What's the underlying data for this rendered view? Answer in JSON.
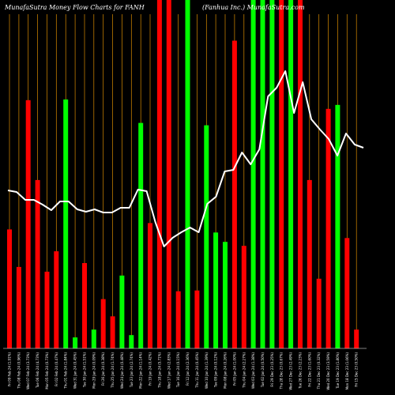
{
  "header": {
    "title_left": "MunafaSutra  Money Flow  Charts for FANH",
    "title_right": "(Fanhua  Inc.)  MunafaSutra.com"
  },
  "colors": {
    "background": "#000000",
    "up": "#00ff00",
    "down": "#ff0000",
    "line": "#ffffff",
    "grid": "#d98c00"
  },
  "chart_data": {
    "type": "bar",
    "overlay": "line",
    "grid": "vertical",
    "bars": [
      {
        "label": "Fri 09 Feb 24 (1.91%)",
        "value": 152,
        "color": "red"
      },
      {
        "label": "Thu 08 Feb 24 (0.96%)",
        "value": 104,
        "color": "red"
      },
      {
        "label": "Wed 07 Feb 24 (3.73%)",
        "value": 317,
        "color": "red"
      },
      {
        "label": "Tue 06 Feb 24 (4.73%)",
        "value": 215,
        "color": "red"
      },
      {
        "label": "Mon 05 Feb 24 (0.73%)",
        "value": 98,
        "color": "red"
      },
      {
        "label": "Fri 02 Feb 24 (0.47%)",
        "value": 124,
        "color": "red"
      },
      {
        "label": "Thu 01 Feb 24 (1.84%)",
        "value": 318,
        "color": "green"
      },
      {
        "label": "Wed 31 Jan 24 (0.45%)",
        "value": 14,
        "color": "green"
      },
      {
        "label": "Tue 30 Jan 24 (1.51%)",
        "value": 109,
        "color": "red"
      },
      {
        "label": "Mon 29 Jan 24 (0.09%)",
        "value": 24,
        "color": "green"
      },
      {
        "label": "Fri 26 Jan 24 (0.38%)",
        "value": 63,
        "color": "red"
      },
      {
        "label": "Thu 25 Jan 24 (1.74%)",
        "value": 41,
        "color": "red"
      },
      {
        "label": "Wed 24 Jan 24 (0.48%)",
        "value": 93,
        "color": "green"
      },
      {
        "label": "Tue 23 Jan 24 (2.74%)",
        "value": 17,
        "color": "green"
      },
      {
        "label": "Mon 22 Jan 24 (1.14%)",
        "value": 288,
        "color": "green"
      },
      {
        "label": "Fri 19 Jan 24 (0.42%)",
        "value": 160,
        "color": "red"
      },
      {
        "label": "Thu 18 Jan 24 (5.71%)",
        "value": 445,
        "color": "red"
      },
      {
        "label": "Wed 17 Jan 24 (2.83%)",
        "value": 445,
        "color": "red"
      },
      {
        "label": "Tue 16 Jan 24 (0.15%)",
        "value": 73,
        "color": "red"
      },
      {
        "label": "Fri 12 Jan 24 (2.36%)",
        "value": 445,
        "color": "green"
      },
      {
        "label": "Thu 11 Jan 24 (0.45%)",
        "value": 74,
        "color": "red"
      },
      {
        "label": "Wed 10 Jan 24 (1.39%)",
        "value": 285,
        "color": "green"
      },
      {
        "label": "Tue 09 Jan 24 (0.12%)",
        "value": 148,
        "color": "green"
      },
      {
        "label": "Mon 08 Jan 24 (0.26%)",
        "value": 136,
        "color": "green"
      },
      {
        "label": "Fri 05 Jan 24 (1.00%)",
        "value": 393,
        "color": "red"
      },
      {
        "label": "Thu 04 Jan 24 (2.27%)",
        "value": 131,
        "color": "red"
      },
      {
        "label": "Wed 03 Jan 24 (1.38%)",
        "value": 445,
        "color": "green"
      },
      {
        "label": "Tue 02 Jan 24 (0.50%)",
        "value": 445,
        "color": "green"
      },
      {
        "label": "Fri 29 Dec 23 (0.25%)",
        "value": 445,
        "color": "green"
      },
      {
        "label": "Thu 28 Dec 23 (0.67%)",
        "value": 445,
        "color": "red"
      },
      {
        "label": "Wed 27 Dec 23 (2.49%)",
        "value": 445,
        "color": "green"
      },
      {
        "label": "Tue 26 Dec 23 (2.23%)",
        "value": 445,
        "color": "red"
      },
      {
        "label": "Fri 22 Dec 23 (1.60%)",
        "value": 215,
        "color": "red"
      },
      {
        "label": "Thu 21 Dec 23 (0.32%)",
        "value": 89,
        "color": "red"
      },
      {
        "label": "Wed 20 Dec 23 (3.59%)",
        "value": 306,
        "color": "red"
      },
      {
        "label": "Tue 19 Dec 23 (1.80%)",
        "value": 311,
        "color": "green"
      },
      {
        "label": "Mon 18 Dec 23 (1.06%)",
        "value": 141,
        "color": "red"
      },
      {
        "label": "Fri 15 Dec 23 (0.50%)",
        "value": 24,
        "color": "red"
      }
    ],
    "line_values": [
      200,
      198,
      188,
      188,
      182,
      175,
      186,
      186,
      176,
      173,
      176,
      172,
      172,
      178,
      178,
      201,
      199,
      160,
      129,
      140,
      147,
      153,
      147,
      183,
      192,
      224,
      226,
      248,
      233,
      252,
      319,
      330,
      351,
      298,
      337,
      290,
      277,
      265,
      244,
      272,
      258,
      254
    ]
  }
}
